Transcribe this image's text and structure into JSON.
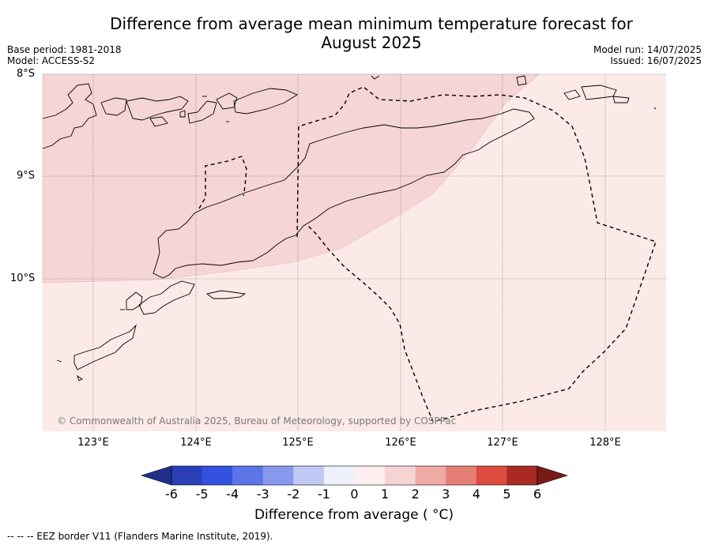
{
  "title": {
    "line1": "Difference from average mean minimum temperature forecast for",
    "line2": "August 2025"
  },
  "meta": {
    "base_period": "Base period: 1981-2018",
    "model": "Model: ACCESS-S2",
    "model_run": "Model run: 14/07/2025",
    "issued": "Issued: 16/07/2025"
  },
  "axes": {
    "lat_labels": [
      "8°S",
      "9°S",
      "10°S"
    ],
    "lon_labels": [
      "123°E",
      "124°E",
      "125°E",
      "126°E",
      "127°E",
      "128°E"
    ]
  },
  "credit": "© Commonwealth of Australia 2025, Bureau of Meteorology, supported by COSPPac",
  "colorbar": {
    "ticks": [
      "-6",
      "-5",
      "-4",
      "-3",
      "-2",
      "-1",
      "0",
      "1",
      "2",
      "3",
      "4",
      "5",
      "6"
    ],
    "colors": [
      "#1f2f8a",
      "#2a3fb8",
      "#3352e0",
      "#5b74e8",
      "#8699ee",
      "#c1c9f6",
      "#eef0fc",
      "#fdf0ef",
      "#f7d4d4",
      "#efaaa6",
      "#e57f76",
      "#dc4b3e",
      "#a82a22",
      "#7a1a18"
    ],
    "label": "Difference from average ( °C)"
  },
  "map_fills": {
    "background_class": "#fbeae8",
    "elevated_class": "#f5d5d5",
    "coastline": "#000000"
  },
  "footnote": "--  --  -- EEZ border V11 (Flanders Marine Institute, 2019)."
}
